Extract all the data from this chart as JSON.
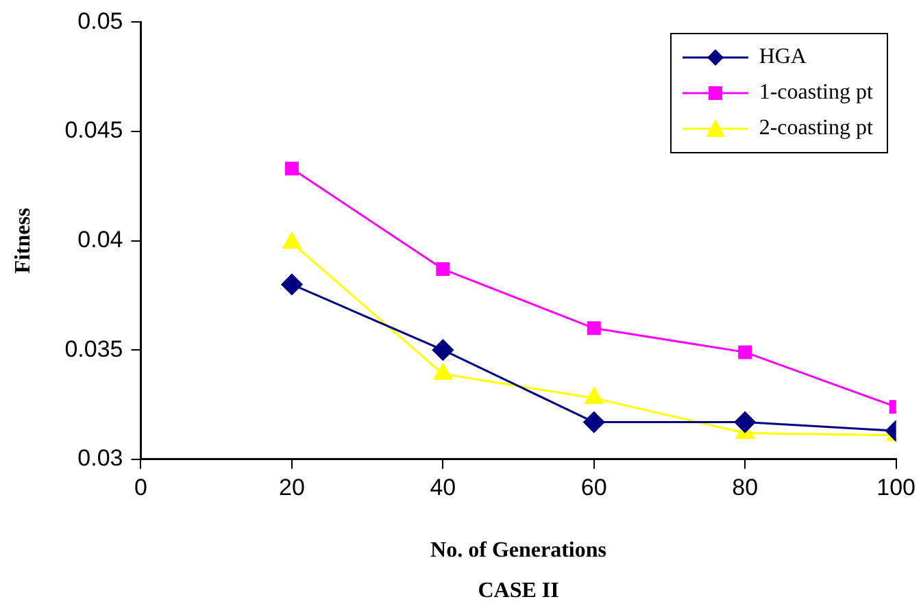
{
  "chart_data": {
    "type": "line",
    "xlabel": "No. of Generations",
    "ylabel": "Fitness",
    "annotations": [
      "CASE II"
    ],
    "x": [
      20,
      40,
      60,
      80,
      100
    ],
    "series": [
      {
        "name": "HGA",
        "color": "#000080",
        "marker": "diamond",
        "values": [
          0.038,
          0.035,
          0.0317,
          0.0317,
          0.0313
        ]
      },
      {
        "name": "1-coasting pt",
        "color": "#ff00ff",
        "marker": "square",
        "values": [
          0.0433,
          0.0387,
          0.036,
          0.0349,
          0.0324
        ]
      },
      {
        "name": "2-coasting pt",
        "color": "#ffff00",
        "marker": "triangle",
        "values": [
          0.0399,
          0.0339,
          0.0328,
          0.0312,
          0.0311
        ]
      }
    ],
    "xlim": [
      0,
      100
    ],
    "xticks": [
      0,
      20,
      40,
      60,
      80,
      100
    ],
    "ylim": [
      0.03,
      0.05
    ],
    "yticks": [
      0.03,
      0.035,
      0.04,
      0.045,
      0.05
    ],
    "grid": false,
    "legend": "top right"
  }
}
